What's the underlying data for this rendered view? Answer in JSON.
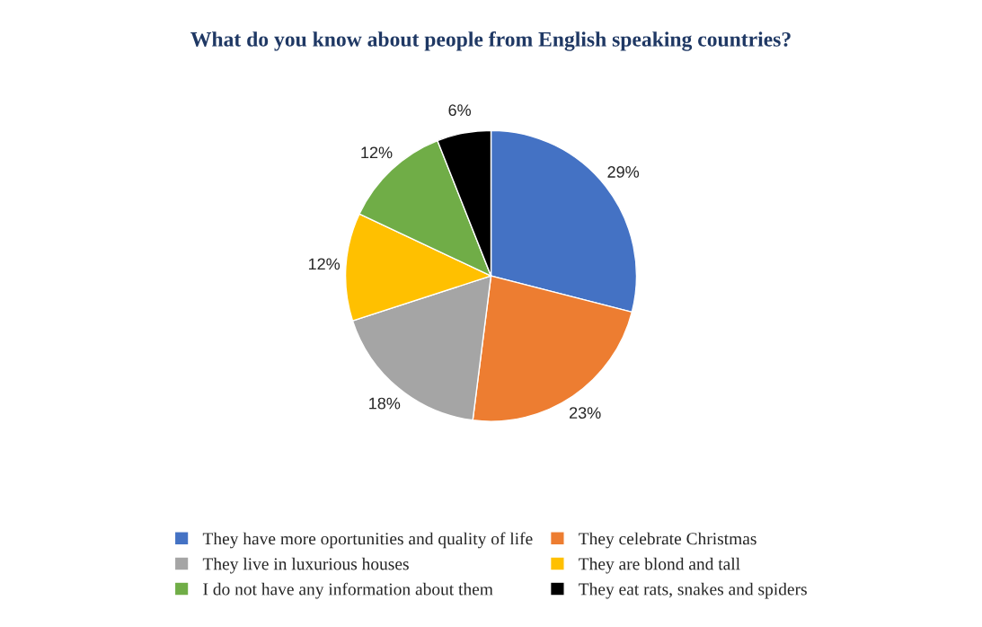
{
  "chart_data": {
    "type": "pie",
    "title": "What do you know about people from English speaking countries?",
    "categories": [
      "They have more oportunities and quality of life",
      "They celebrate Christmas",
      "They live in luxurious houses",
      "They are blond and tall",
      "I do not have any information about them",
      "They eat rats, snakes and spiders"
    ],
    "values": [
      29,
      23,
      18,
      12,
      12,
      6
    ],
    "colors": [
      "#4472c4",
      "#ed7d31",
      "#a5a5a5",
      "#ffc000",
      "#70ad47",
      "#000000"
    ],
    "value_labels": [
      "29%",
      "23%",
      "18%",
      "12%",
      "12%",
      "6%"
    ],
    "legend": "bottom"
  }
}
